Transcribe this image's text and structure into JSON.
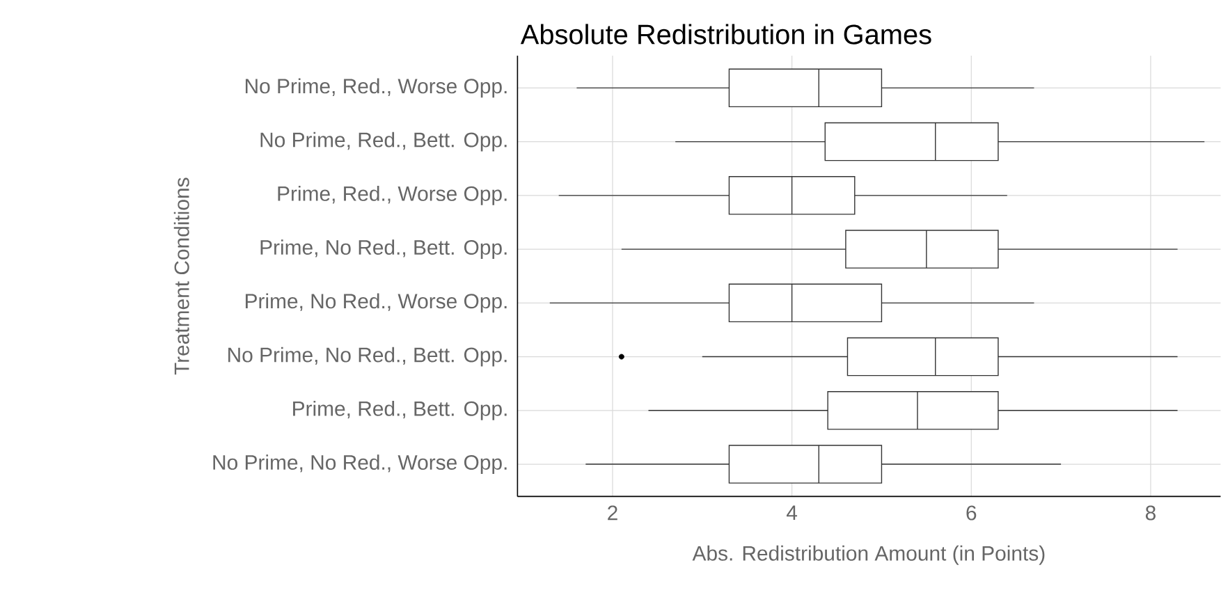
{
  "chart_data": {
    "type": "box",
    "title": "Absolute Redistribution in Games",
    "xlabel": "Abs. Redistribution Amount (in Points)",
    "ylabel": "Treatment Conditions",
    "orientation": "horizontal",
    "grid": true,
    "xlim": [
      0.94,
      8.78
    ],
    "xticks": [
      2,
      4,
      6,
      8
    ],
    "categories": [
      "No Prime, Red., Worse Opp.",
      "No Prime, Red., Bett. Opp.",
      "Prime, Red., Worse Opp.",
      "Prime, No Red., Bett. Opp.",
      "Prime, No Red., Worse Opp.",
      "No Prime, No Red., Bett. Opp.",
      "Prime, Red., Bett. Opp.",
      "No Prime, No Red., Worse Opp."
    ],
    "boxes": [
      {
        "low": 1.6,
        "q1": 3.3,
        "median": 4.3,
        "q3": 5.0,
        "high": 6.7
      },
      {
        "low": 2.7,
        "q1": 4.37,
        "median": 5.6,
        "q3": 6.3,
        "high": 8.6
      },
      {
        "low": 1.4,
        "q1": 3.3,
        "median": 4.0,
        "q3": 4.7,
        "high": 6.4
      },
      {
        "low": 2.1,
        "q1": 4.6,
        "median": 5.5,
        "q3": 6.3,
        "high": 8.3
      },
      {
        "low": 1.3,
        "q1": 3.3,
        "median": 4.0,
        "q3": 5.0,
        "high": 6.7
      },
      {
        "low": 3.0,
        "q1": 4.62,
        "median": 5.6,
        "q3": 6.3,
        "high": 8.3,
        "outliers": [
          2.1
        ]
      },
      {
        "low": 2.4,
        "q1": 4.4,
        "median": 5.4,
        "q3": 6.3,
        "high": 8.3
      },
      {
        "low": 1.7,
        "q1": 3.3,
        "median": 4.3,
        "q3": 5.0,
        "high": 7.0
      }
    ]
  }
}
